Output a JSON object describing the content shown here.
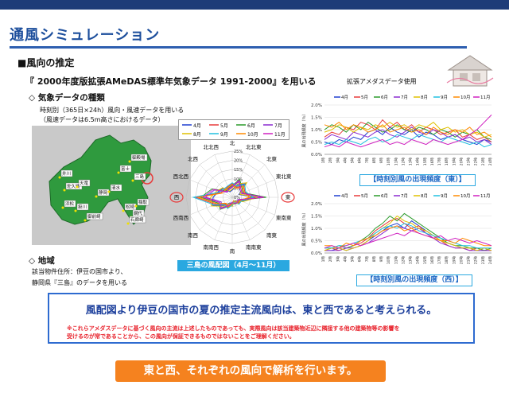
{
  "title": "通風シミュレーション",
  "section": "■風向の推定",
  "quote": "『 2000年度版拡張AMeDAS標準年気象データ 1991-2000』を用いる",
  "ext_label": "拡張アメダスデータ使用",
  "weather": {
    "heading": "◇ 気象データの種類",
    "line1": "時刻別（365日×24h）風向・風速データを用いる",
    "line2": "（風速データは6.5m高さにおけるデータ）"
  },
  "region": {
    "heading": "◇ 地域",
    "line1": "該当物件住所：伊豆の国市より、",
    "line2": "静岡県『三島』のデータを用いる"
  },
  "map": {
    "labels": [
      "井川",
      "佐久間",
      "天竜",
      "浜松",
      "掛川",
      "静岡",
      "清水",
      "御前崎",
      "松崎",
      "網代",
      "三島",
      "御殿場",
      "富士",
      "稲取",
      "石廊崎"
    ]
  },
  "months": [
    "4月",
    "5月",
    "6月",
    "7月",
    "8月",
    "9月",
    "10月",
    "11月"
  ],
  "month_colors": [
    "#1f3fd0",
    "#e83a3a",
    "#2a9a2a",
    "#8a2ad0",
    "#e0c000",
    "#20c0e0",
    "#ff8a00",
    "#d020c0"
  ],
  "radar": {
    "directions": [
      "北",
      "北北東",
      "北東",
      "東北東",
      "東",
      "東南東",
      "南東",
      "南南東",
      "南",
      "南南西",
      "南西",
      "西南西",
      "西",
      "西北西",
      "北西",
      "北北西"
    ],
    "scale_ticks": [
      "25%",
      "20%",
      "15%",
      "10%",
      "5%",
      "0%"
    ],
    "caption": "三島の風配図（4月～11月）",
    "highlight": [
      "西",
      "東"
    ]
  },
  "chart_data": [
    {
      "type": "line",
      "title": "【時刻別風の出現頻度（東）】",
      "ylabel": "風の出現頻度（％）",
      "yticks": [
        "0.0%",
        "0.5%",
        "1.0%",
        "1.5%",
        "2.0%"
      ],
      "ylim": [
        0,
        2.0
      ],
      "x": [
        "1時",
        "2時",
        "3時",
        "4時",
        "5時",
        "6時",
        "7時",
        "8時",
        "9時",
        "10時",
        "11時",
        "12時",
        "13時",
        "14時",
        "15時",
        "16時",
        "17時",
        "18時",
        "19時",
        "20時",
        "21時",
        "22時",
        "23時",
        "24時"
      ],
      "series": [
        {
          "name": "4月",
          "values": [
            0.5,
            0.4,
            0.6,
            0.5,
            0.7,
            0.6,
            0.9,
            1.0,
            0.8,
            1.1,
            0.9,
            0.8,
            1.0,
            0.7,
            0.9,
            0.8,
            0.6,
            0.7,
            0.8,
            0.6,
            0.5,
            0.4,
            0.6,
            0.5
          ]
        },
        {
          "name": "5月",
          "values": [
            0.7,
            0.9,
            0.8,
            1.1,
            1.0,
            1.3,
            1.2,
            1.0,
            1.4,
            1.1,
            1.3,
            1.0,
            1.2,
            0.9,
            1.1,
            1.0,
            0.8,
            0.9,
            1.0,
            0.7,
            0.8,
            0.6,
            0.7,
            0.5
          ]
        },
        {
          "name": "6月",
          "values": [
            1.0,
            1.2,
            1.1,
            0.9,
            1.2,
            1.0,
            1.3,
            1.1,
            0.9,
            1.0,
            1.2,
            1.0,
            0.9,
            1.1,
            1.0,
            0.8,
            1.0,
            0.9,
            0.7,
            0.9,
            0.8,
            1.0,
            0.7,
            0.6
          ]
        },
        {
          "name": "7月",
          "values": [
            0.6,
            0.8,
            0.7,
            0.6,
            0.9,
            0.8,
            0.7,
            0.9,
            1.0,
            0.8,
            0.7,
            0.9,
            1.1,
            0.9,
            0.8,
            1.0,
            0.9,
            0.7,
            0.8,
            0.6,
            0.7,
            0.5,
            0.6,
            0.4
          ]
        },
        {
          "name": "8月",
          "values": [
            0.9,
            1.0,
            1.2,
            1.1,
            0.9,
            1.1,
            1.0,
            1.2,
            1.1,
            1.3,
            1.1,
            1.2,
            1.0,
            1.2,
            1.1,
            1.3,
            1.0,
            1.1,
            0.9,
            1.0,
            0.8,
            0.9,
            0.7,
            0.8
          ]
        },
        {
          "name": "9月",
          "values": [
            0.4,
            0.5,
            0.4,
            0.6,
            0.5,
            0.4,
            0.6,
            0.7,
            0.5,
            0.6,
            0.8,
            0.7,
            0.6,
            0.8,
            0.7,
            0.6,
            0.5,
            0.7,
            0.6,
            0.5,
            0.4,
            0.5,
            0.3,
            0.4
          ]
        },
        {
          "name": "10月",
          "values": [
            1.2,
            1.1,
            1.3,
            1.0,
            1.2,
            1.1,
            0.9,
            1.0,
            1.2,
            0.9,
            1.0,
            1.1,
            0.9,
            1.0,
            0.8,
            1.1,
            0.9,
            0.8,
            1.0,
            0.9,
            1.1,
            0.8,
            0.9,
            0.7
          ]
        },
        {
          "name": "11月",
          "values": [
            0.3,
            0.4,
            0.3,
            0.5,
            0.4,
            0.3,
            0.4,
            0.5,
            0.6,
            0.4,
            0.5,
            0.4,
            0.6,
            0.5,
            0.4,
            0.6,
            0.5,
            0.4,
            0.5,
            0.6,
            0.8,
            1.0,
            1.3,
            1.6
          ]
        }
      ]
    },
    {
      "type": "line",
      "title": "【時刻別風の出現頻度（西）】",
      "ylabel": "風の出現頻度（％）",
      "yticks": [
        "0.0%",
        "0.5%",
        "1.0%",
        "1.5%",
        "2.0%"
      ],
      "ylim": [
        0,
        2.0
      ],
      "x": [
        "1時",
        "2時",
        "3時",
        "4時",
        "5時",
        "6時",
        "7時",
        "8時",
        "9時",
        "10時",
        "11時",
        "12時",
        "13時",
        "14時",
        "15時",
        "16時",
        "17時",
        "18時",
        "19時",
        "20時",
        "21時",
        "22時",
        "23時",
        "24時"
      ],
      "series": [
        {
          "name": "4月",
          "values": [
            0.1,
            0.1,
            0.2,
            0.1,
            0.2,
            0.3,
            0.5,
            0.7,
            0.9,
            1.1,
            1.2,
            1.0,
            1.3,
            1.1,
            0.9,
            0.7,
            0.5,
            0.4,
            0.3,
            0.2,
            0.2,
            0.1,
            0.1,
            0.1
          ]
        },
        {
          "name": "5月",
          "values": [
            0.1,
            0.2,
            0.1,
            0.2,
            0.3,
            0.4,
            0.6,
            0.9,
            1.1,
            1.3,
            1.4,
            1.2,
            1.0,
            1.1,
            0.8,
            0.6,
            0.5,
            0.3,
            0.2,
            0.2,
            0.1,
            0.2,
            0.1,
            0.1
          ]
        },
        {
          "name": "6月",
          "values": [
            0.2,
            0.2,
            0.3,
            0.2,
            0.3,
            0.5,
            0.7,
            1.0,
            1.2,
            1.5,
            1.3,
            1.6,
            1.4,
            1.2,
            1.0,
            0.8,
            0.6,
            0.4,
            0.3,
            0.3,
            0.2,
            0.2,
            0.1,
            0.2
          ]
        },
        {
          "name": "7月",
          "values": [
            0.1,
            0.1,
            0.1,
            0.2,
            0.2,
            0.3,
            0.4,
            0.6,
            0.8,
            1.0,
            1.1,
            1.0,
            0.9,
            1.0,
            0.8,
            0.6,
            0.4,
            0.3,
            0.2,
            0.2,
            0.1,
            0.1,
            0.1,
            0.1
          ]
        },
        {
          "name": "8月",
          "values": [
            0.1,
            0.2,
            0.2,
            0.1,
            0.2,
            0.3,
            0.5,
            0.8,
            1.0,
            1.2,
            1.5,
            1.3,
            1.2,
            1.0,
            0.9,
            0.7,
            0.5,
            0.4,
            0.3,
            0.2,
            0.2,
            0.1,
            0.2,
            0.1
          ]
        },
        {
          "name": "9月",
          "values": [
            0.2,
            0.2,
            0.3,
            0.3,
            0.4,
            0.5,
            0.6,
            0.8,
            1.0,
            1.1,
            1.0,
            1.2,
            1.1,
            0.9,
            0.8,
            0.7,
            0.6,
            0.5,
            0.4,
            0.3,
            0.3,
            0.2,
            0.2,
            0.2
          ]
        },
        {
          "name": "10月",
          "values": [
            0.3,
            0.3,
            0.2,
            0.4,
            0.3,
            0.5,
            0.6,
            0.7,
            0.9,
            1.0,
            1.1,
            0.9,
            1.0,
            0.8,
            0.7,
            0.6,
            0.5,
            0.5,
            0.4,
            0.6,
            0.5,
            0.4,
            0.3,
            0.3
          ]
        },
        {
          "name": "11月",
          "values": [
            0.2,
            0.3,
            0.2,
            0.3,
            0.4,
            0.3,
            0.4,
            0.5,
            0.6,
            0.7,
            0.8,
            0.7,
            0.9,
            0.8,
            0.7,
            0.6,
            0.7,
            0.5,
            0.6,
            0.5,
            0.4,
            0.5,
            0.4,
            0.3
          ]
        }
      ]
    }
  ],
  "conclusion": "風配図より伊豆の国市の夏の推定主流風向は、東と西であると考えられる。",
  "note_line1": "※これらアメダスデータに基づく風向の主流は上述したものであっても、実際風向は該当建築物近辺に隣接する他の建築物等の影響を",
  "note_line2": "受けるのが常であることから、この風向が保証できるものではないことをご理解ください。",
  "banner": "東と西、それぞれの風向で解析を行います。"
}
